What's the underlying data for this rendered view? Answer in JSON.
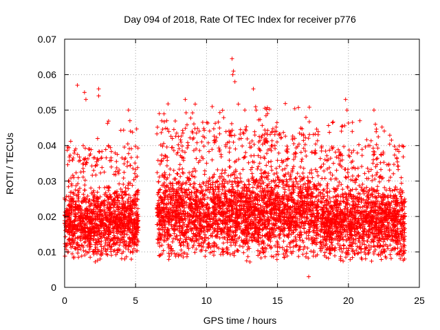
{
  "chart_data": {
    "type": "scatter",
    "title": "Day 094 of 2018, Rate Of TEC Index for receiver p776",
    "xlabel": "GPS time / hours",
    "ylabel": "ROTI / TECUs",
    "xlim": [
      0,
      25
    ],
    "ylim": [
      0,
      0.07
    ],
    "xticks": [
      0,
      5,
      10,
      15,
      20,
      25
    ],
    "xtick_labels": [
      "0",
      "5",
      "10",
      "15",
      "20",
      "25"
    ],
    "yticks": [
      0,
      0.01,
      0.02,
      0.03,
      0.04,
      0.05,
      0.06,
      0.07
    ],
    "ytick_labels": [
      "0",
      "0.01",
      "0.02",
      "0.03",
      "0.04",
      "0.05",
      "0.06",
      "0.07"
    ],
    "grid": true,
    "marker": "plus",
    "color": "#ff0000",
    "data_segments": [
      {
        "x_start": 0.0,
        "x_end": 5.2,
        "y_typical": [
          0.007,
          0.03
        ]
      },
      {
        "x_start": 6.5,
        "x_end": 17.9,
        "y_typical": [
          0.007,
          0.035
        ]
      },
      {
        "x_start": 18.0,
        "x_end": 24.0,
        "y_typical": [
          0.007,
          0.03
        ]
      }
    ],
    "gap": [
      5.2,
      6.5
    ],
    "notable_points": [
      {
        "x": 0.9,
        "y": 0.057
      },
      {
        "x": 1.4,
        "y": 0.055
      },
      {
        "x": 1.5,
        "y": 0.053
      },
      {
        "x": 2.4,
        "y": 0.056
      },
      {
        "x": 2.4,
        "y": 0.054
      },
      {
        "x": 4.5,
        "y": 0.05
      },
      {
        "x": 4.6,
        "y": 0.047
      },
      {
        "x": 7.2,
        "y": 0.047
      },
      {
        "x": 8.5,
        "y": 0.053
      },
      {
        "x": 10.4,
        "y": 0.051
      },
      {
        "x": 11.8,
        "y": 0.0645
      },
      {
        "x": 11.9,
        "y": 0.061
      },
      {
        "x": 11.85,
        "y": 0.06
      },
      {
        "x": 12.0,
        "y": 0.058
      },
      {
        "x": 12.7,
        "y": 0.05
      },
      {
        "x": 13.3,
        "y": 0.056
      },
      {
        "x": 13.5,
        "y": 0.05
      },
      {
        "x": 14.3,
        "y": 0.049
      },
      {
        "x": 17.2,
        "y": 0.003
      },
      {
        "x": 19.8,
        "y": 0.053
      },
      {
        "x": 19.9,
        "y": 0.05
      },
      {
        "x": 21.8,
        "y": 0.05
      },
      {
        "x": 21.9,
        "y": 0.046
      }
    ]
  }
}
